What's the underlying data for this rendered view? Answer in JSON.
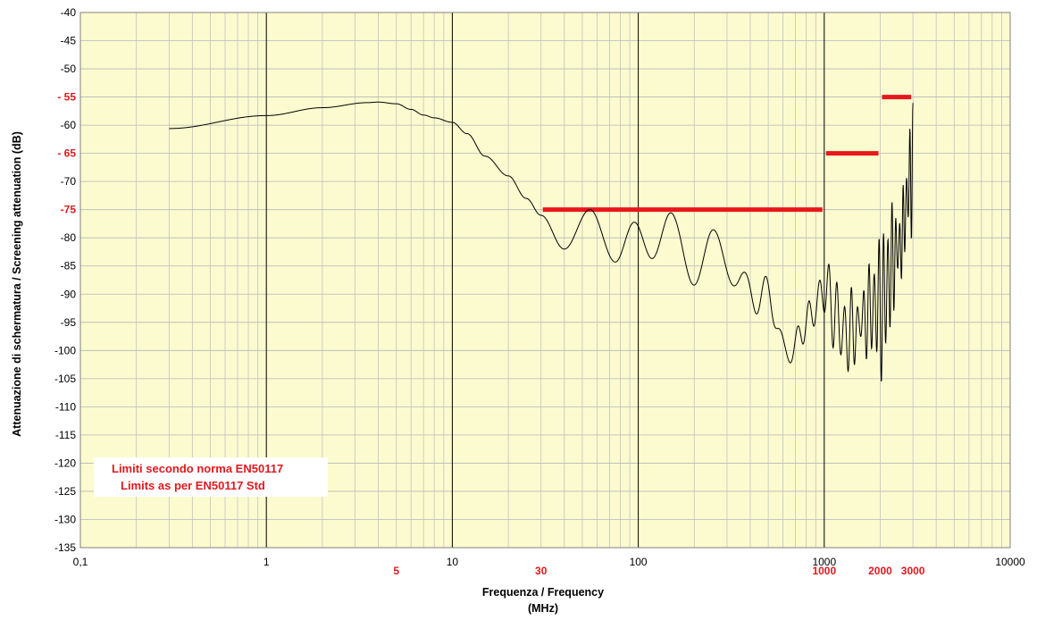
{
  "chart_data": {
    "type": "line",
    "title": "",
    "xscale": "log",
    "xlim": [
      0.1,
      10000
    ],
    "ylim": [
      -135,
      -40
    ],
    "xlabel": "Frequenza / Frequency",
    "xlabel_unit": "(MHz)",
    "ylabel": "Attenuazione di schermatura / Screening attenuation (dB)",
    "x_ticks": [
      {
        "value": 0.1,
        "label": "0,1"
      },
      {
        "value": 1,
        "label": "1"
      },
      {
        "value": 10,
        "label": "10"
      },
      {
        "value": 100,
        "label": "100"
      },
      {
        "value": 1000,
        "label": "1000"
      },
      {
        "value": 10000,
        "label": "10000"
      }
    ],
    "x_ticks_highlight": [
      {
        "value": 5,
        "label": "5"
      },
      {
        "value": 30,
        "label": "30"
      },
      {
        "value": 1000,
        "label": "1000"
      },
      {
        "value": 2000,
        "label": "2000"
      },
      {
        "value": 3000,
        "label": "3000"
      }
    ],
    "y_ticks": [
      {
        "value": -40,
        "label": "-40"
      },
      {
        "value": -45,
        "label": "-45"
      },
      {
        "value": -50,
        "label": "-50"
      },
      {
        "value": -55,
        "label": "- 55",
        "highlight": true
      },
      {
        "value": -60,
        "label": "-60"
      },
      {
        "value": -65,
        "label": "- 65",
        "highlight": true
      },
      {
        "value": -70,
        "label": "-70"
      },
      {
        "value": -75,
        "label": "-75",
        "highlight": true
      },
      {
        "value": -80,
        "label": "-80"
      },
      {
        "value": -85,
        "label": "-85"
      },
      {
        "value": -90,
        "label": "-90"
      },
      {
        "value": -95,
        "label": "-95"
      },
      {
        "value": -100,
        "label": "-100"
      },
      {
        "value": -105,
        "label": "-105"
      },
      {
        "value": -110,
        "label": "-110"
      },
      {
        "value": -115,
        "label": "-115"
      },
      {
        "value": -120,
        "label": "-120"
      },
      {
        "value": -125,
        "label": "-125"
      },
      {
        "value": -130,
        "label": "-130"
      },
      {
        "value": -135,
        "label": "-135"
      }
    ],
    "series": [
      {
        "color": "#000000",
        "anchors": [
          [
            0.3,
            -60.6
          ],
          [
            1,
            -58.3
          ],
          [
            2,
            -56.9
          ],
          [
            3.5,
            -56.0
          ],
          [
            4,
            -55.9
          ],
          [
            5,
            -56.2
          ],
          [
            6,
            -57.2
          ],
          [
            7,
            -58.2
          ],
          [
            8,
            -58.7
          ],
          [
            10,
            -59.5
          ],
          [
            12,
            -61.5
          ],
          [
            15,
            -65.5
          ],
          [
            20,
            -69
          ],
          [
            25,
            -73
          ],
          [
            30,
            -76
          ],
          [
            40,
            -82
          ],
          [
            55,
            -75
          ],
          [
            75,
            -83.8
          ],
          [
            95,
            -76.5
          ],
          [
            120,
            -84
          ],
          [
            150,
            -77.5
          ],
          [
            200,
            -86
          ],
          [
            250,
            -80.5
          ],
          [
            350,
            -88
          ],
          [
            500,
            -91
          ],
          [
            650,
            -101
          ],
          [
            800,
            -95
          ],
          [
            1000,
            -89.5
          ],
          [
            1300,
            -97
          ],
          [
            2000,
            -92
          ],
          [
            2500,
            -82
          ],
          [
            3000,
            -68
          ]
        ],
        "ripple_anchors": [
          [
            30,
            0
          ],
          [
            40,
            0
          ],
          [
            100,
            1
          ],
          [
            200,
            3
          ],
          [
            350,
            5
          ],
          [
            500,
            7
          ],
          [
            650,
            4
          ],
          [
            1000,
            5
          ],
          [
            1200,
            9
          ],
          [
            1500,
            12
          ],
          [
            2000,
            14
          ],
          [
            2500,
            13
          ],
          [
            3000,
            14
          ]
        ]
      }
    ],
    "limit_lines": [
      {
        "x_start": 30,
        "x_end": 1000,
        "y": -75
      },
      {
        "x_start": 1000,
        "x_end": 2000,
        "y": -65
      },
      {
        "x_start": 2000,
        "x_end": 3000,
        "y": -55
      }
    ],
    "limit_color": "#e8171c",
    "plot_background": "#fbfbcf",
    "annotation": {
      "line1": "Limiti secondo norma EN50117",
      "line2": "Limits as per EN50117 Std"
    }
  }
}
